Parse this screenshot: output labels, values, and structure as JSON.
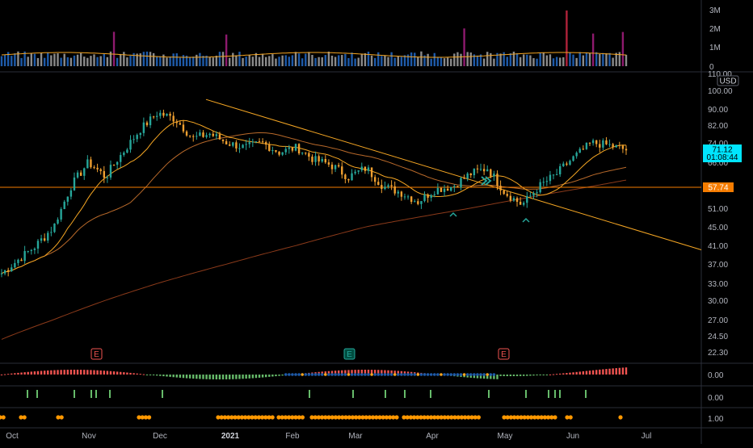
{
  "chart_data": {
    "type": "candlestick",
    "currency": "USD",
    "price_axis_ticks": [
      "110.00",
      "100.00",
      "90.00",
      "82.00",
      "74.00",
      "66.00",
      "57.74",
      "51.00",
      "45.00",
      "41.00",
      "37.00",
      "33.00",
      "30.00",
      "27.00",
      "24.50",
      "22.30"
    ],
    "volume_axis_ticks": [
      "3M",
      "2M",
      "1M",
      "0"
    ],
    "indicator_axis_ticks": [
      "0.00",
      "0.00",
      "1.00"
    ],
    "time_axis_labels": [
      "Oct",
      "Nov",
      "Dec",
      "2021",
      "Feb",
      "Mar",
      "Apr",
      "May",
      "Jun",
      "Jul"
    ],
    "last_price": "71.12",
    "countdown": "01:08:44",
    "horizontal_level": "57.74",
    "earnings_markers": [
      "E",
      "E",
      "E"
    ],
    "colors": {
      "up": "#26a69a",
      "down": "#f0a030",
      "ma_fast": "#f5a623",
      "ma_slow": "#8b3a1a",
      "trend": "#f5a623",
      "level": "#f57c00",
      "hist_pos": "#ef5350",
      "hist_neg": "#66bb6a",
      "last_badge": "#00e5ff",
      "vol_up": "#1e5aa8",
      "vol_down": "#8a8a8a",
      "vol_spike": "#8e1a6e"
    },
    "price_series": [
      {
        "date": "Oct 1",
        "close": 35
      },
      {
        "date": "Oct 15",
        "close": 38
      },
      {
        "date": "Oct 29",
        "close": 41
      },
      {
        "date": "Nov 5",
        "close": 45
      },
      {
        "date": "Nov 12",
        "close": 58
      },
      {
        "date": "Nov 19",
        "close": 66
      },
      {
        "date": "Nov 26",
        "close": 61
      },
      {
        "date": "Dec 3",
        "close": 70
      },
      {
        "date": "Dec 10",
        "close": 80
      },
      {
        "date": "Dec 17",
        "close": 88
      },
      {
        "date": "Dec 24",
        "close": 85
      },
      {
        "date": "Dec 31",
        "close": 76
      },
      {
        "date": "Jan 7",
        "close": 78
      },
      {
        "date": "Jan 14",
        "close": 74
      },
      {
        "date": "Jan 21",
        "close": 72
      },
      {
        "date": "Jan 28",
        "close": 74
      },
      {
        "date": "Feb 4",
        "close": 70
      },
      {
        "date": "Feb 11",
        "close": 72
      },
      {
        "date": "Feb 18",
        "close": 67
      },
      {
        "date": "Feb 25",
        "close": 65
      },
      {
        "date": "Mar 4",
        "close": 61
      },
      {
        "date": "Mar 11",
        "close": 64
      },
      {
        "date": "Mar 18",
        "close": 58
      },
      {
        "date": "Mar 25",
        "close": 56
      },
      {
        "date": "Apr 1",
        "close": 53
      },
      {
        "date": "Apr 8",
        "close": 57
      },
      {
        "date": "Apr 15",
        "close": 58
      },
      {
        "date": "Apr 22",
        "close": 62
      },
      {
        "date": "Apr 29",
        "close": 64
      },
      {
        "date": "May 6",
        "close": 56
      },
      {
        "date": "May 13",
        "close": 52
      },
      {
        "date": "May 20",
        "close": 58
      },
      {
        "date": "May 27",
        "close": 62
      },
      {
        "date": "Jun 3",
        "close": 68
      },
      {
        "date": "Jun 10",
        "close": 74
      },
      {
        "date": "Jun 17",
        "close": 73
      },
      {
        "date": "Jun 24",
        "close": 71
      }
    ]
  }
}
